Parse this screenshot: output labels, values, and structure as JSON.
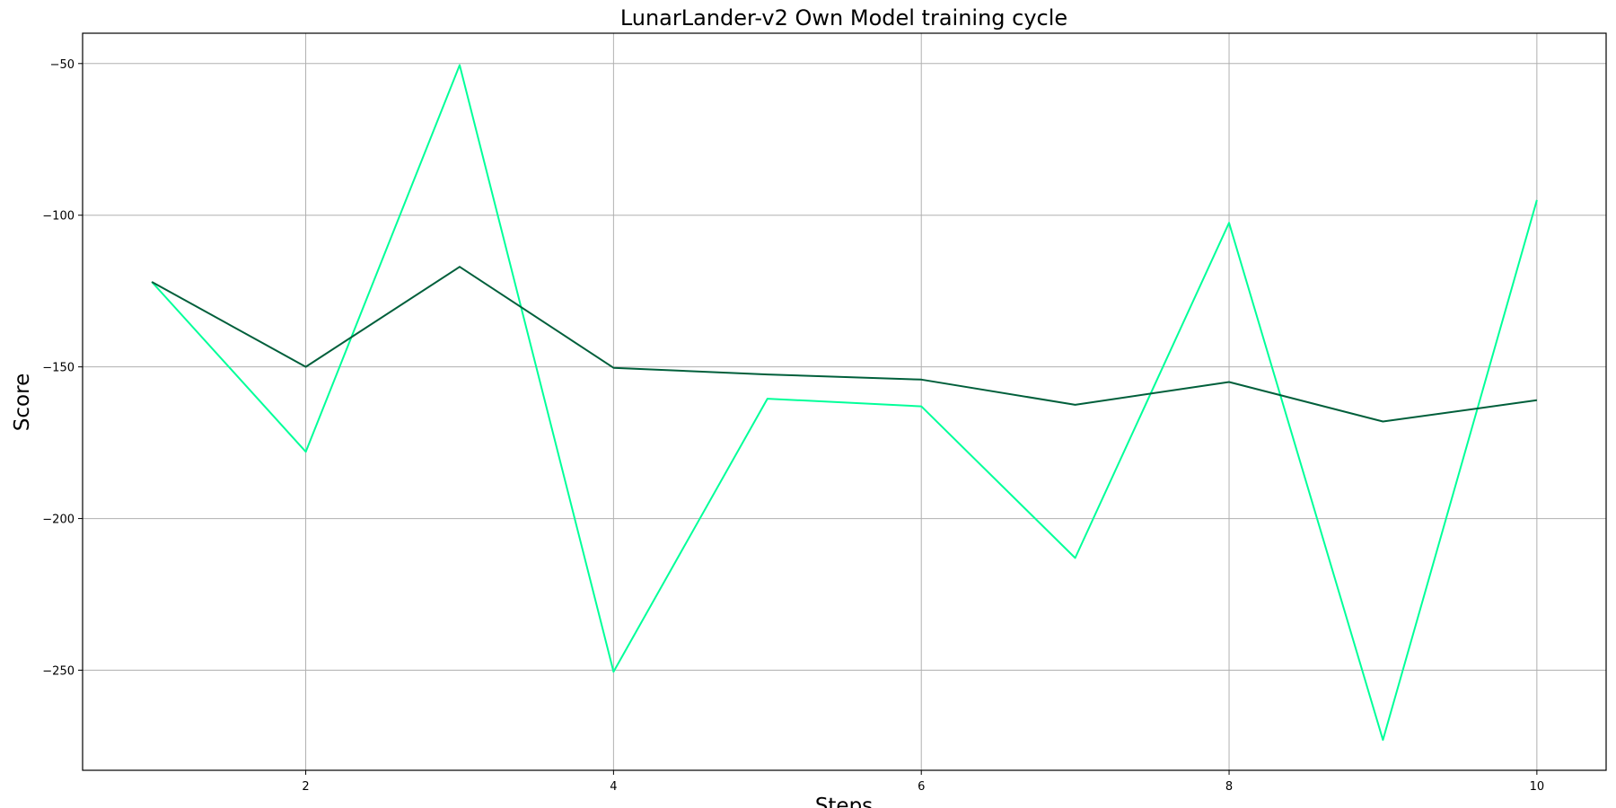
{
  "chart_data": {
    "type": "line",
    "title": "LunarLander-v2 Own Model training cycle",
    "xlabel": "Steps",
    "ylabel": "Score",
    "xlim": [
      0.55,
      10.45
    ],
    "ylim": [
      -283,
      -40
    ],
    "xticks": [
      2,
      4,
      6,
      8,
      10
    ],
    "yticks": [
      -50,
      -100,
      -150,
      -200,
      -250
    ],
    "xtick_labels": [
      "2",
      "4",
      "6",
      "8",
      "10"
    ],
    "ytick_labels": [
      "−50",
      "−100",
      "−150",
      "−200",
      "−250"
    ],
    "grid": true,
    "x": [
      1,
      2,
      3,
      4,
      5,
      6,
      7,
      8,
      9,
      10
    ],
    "series": [
      {
        "color": "#00ff99",
        "values": [
          -122,
          -178,
          -50.5,
          -250.5,
          -160.5,
          -163,
          -213,
          -102.5,
          -273,
          -95
        ]
      },
      {
        "color": "#005f3b",
        "values": [
          -122,
          -150,
          -117,
          -150.3,
          -152.5,
          -154.2,
          -162.5,
          -155,
          -168,
          -161
        ]
      }
    ]
  }
}
